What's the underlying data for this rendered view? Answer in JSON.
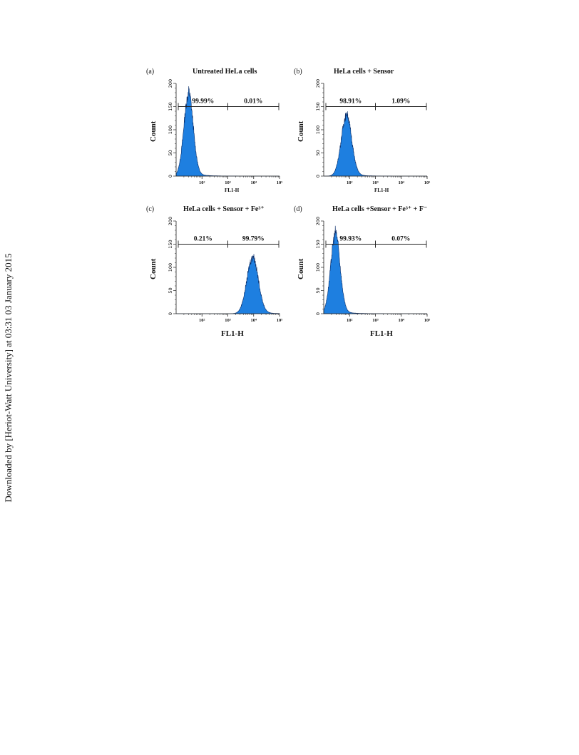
{
  "watermark": "Downloaded by [Heriot-Watt University] at 03:31 03 January 2015",
  "chart_data": [
    {
      "type": "area",
      "panel_label": "(a)",
      "title": "Untreated HeLa cells",
      "xlabel": "FL1-H",
      "ylabel": "Count",
      "x_scale": "log",
      "xlim": [
        10,
        100000
      ],
      "ylim": [
        0,
        200
      ],
      "x_ticks": [
        "10²",
        "10³",
        "10⁴",
        "10⁵"
      ],
      "y_ticks": [
        "0",
        "50",
        "100",
        "150",
        "200"
      ],
      "peak_center": 30,
      "peak_height": 175,
      "peak_width_decades": 0.18,
      "gates": [
        {
          "label": "99.99%",
          "from": 10,
          "to": 1000
        },
        {
          "label": "0.01%",
          "from": 1000,
          "to": 100000
        }
      ]
    },
    {
      "type": "area",
      "panel_label": "(b)",
      "title": "HeLa cells + Sensor",
      "xlabel": "FL1-H",
      "ylabel": "Count",
      "x_scale": "log",
      "xlim": [
        10,
        100000
      ],
      "ylim": [
        0,
        200
      ],
      "x_ticks": [
        "10²",
        "10³",
        "10⁴",
        "10⁵"
      ],
      "y_ticks": [
        "0",
        "50",
        "100",
        "150",
        "200"
      ],
      "peak_center": 75,
      "peak_height": 130,
      "peak_width_decades": 0.2,
      "gates": [
        {
          "label": "98.91%",
          "from": 10,
          "to": 1000
        },
        {
          "label": "1.09%",
          "from": 1000,
          "to": 100000
        }
      ]
    },
    {
      "type": "area",
      "panel_label": "(c)",
      "title": "HeLa cells + Sensor + Fe³⁺",
      "xlabel": "FL1-H",
      "ylabel": "Count",
      "x_scale": "log",
      "xlim": [
        10,
        100000
      ],
      "ylim": [
        0,
        200
      ],
      "x_ticks": [
        "10²",
        "10³",
        "10⁴",
        "10⁵"
      ],
      "y_ticks": [
        "0",
        "50",
        "100",
        "150",
        "200"
      ],
      "peak_center": 9000,
      "peak_height": 120,
      "peak_width_decades": 0.22,
      "gates": [
        {
          "label": "0.21%",
          "from": 10,
          "to": 1000
        },
        {
          "label": "99.79%",
          "from": 1000,
          "to": 100000
        }
      ]
    },
    {
      "type": "area",
      "panel_label": "(d)",
      "title": "HeLa cells +Sensor + Fe³⁺ + F⁻",
      "xlabel": "FL1-H",
      "ylabel": "Count",
      "x_scale": "log",
      "xlim": [
        10,
        100000
      ],
      "ylim": [
        0,
        200
      ],
      "x_ticks": [
        "10²",
        "10³",
        "10⁴",
        "10⁵"
      ],
      "y_ticks": [
        "0",
        "50",
        "100",
        "150",
        "200"
      ],
      "peak_center": 28,
      "peak_height": 170,
      "peak_width_decades": 0.18,
      "gates": [
        {
          "label": "99.93%",
          "from": 10,
          "to": 1000
        },
        {
          "label": "0.07%",
          "from": 1000,
          "to": 100000
        }
      ]
    }
  ],
  "colors": {
    "fill": "#1e7fe0",
    "edge": "#0b2f6b",
    "axis": "#222222"
  }
}
